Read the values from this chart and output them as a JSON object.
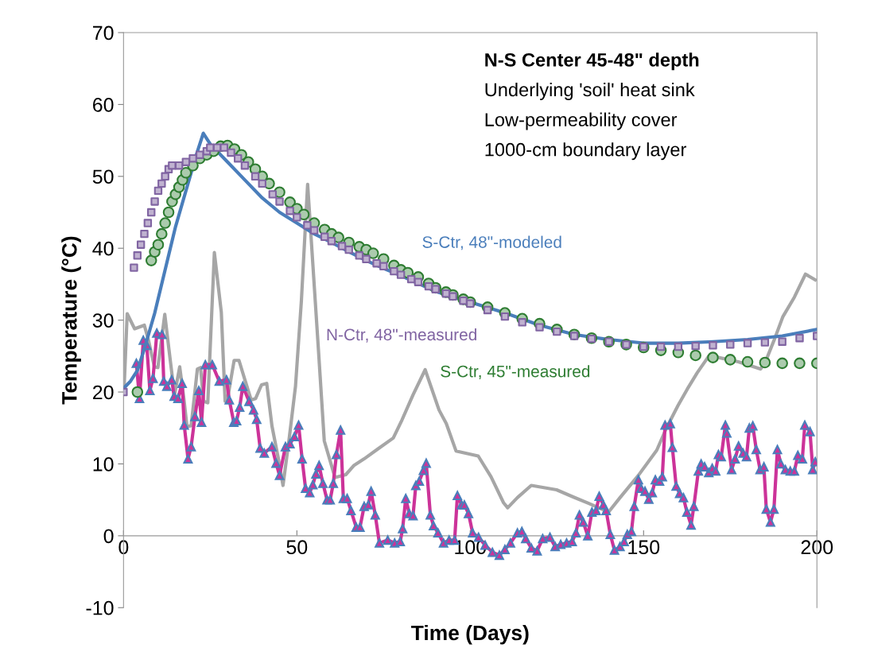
{
  "chart_data": {
    "type": "line",
    "xlabel": "Time (Days)",
    "ylabel": "Temperature (°C)",
    "xlim": [
      0,
      200
    ],
    "xticks": [
      0,
      50,
      100,
      150,
      200
    ],
    "ylim": [
      -10,
      70
    ],
    "yticks": [
      -10,
      0,
      10,
      20,
      30,
      40,
      50,
      60,
      70
    ],
    "grid": false,
    "legend": false,
    "series": [
      {
        "color": "#a6a6a6",
        "marker": "none",
        "x": [
          0.2,
          1.05,
          3.2,
          6,
          7.2,
          8.9,
          9.9,
          11.9,
          13,
          14.7,
          16.2,
          17.4,
          18.3,
          19.5,
          21.3,
          22.2,
          23.1,
          24.3,
          26.2,
          28.2,
          29.3,
          30.2,
          31.9,
          33.3,
          35,
          36.8,
          38.1,
          39.8,
          41.3,
          42.8,
          44.7,
          46,
          47.8,
          49.6,
          51.3,
          53.1,
          54.6,
          56.2,
          57.9,
          61,
          64.1,
          66.5,
          69.4,
          73.4,
          77.8,
          80.3,
          83.5,
          87,
          91,
          93.1,
          95.9,
          102.3,
          106,
          109.6,
          110.8,
          113.6,
          117.6,
          124.9,
          129.7,
          134.2,
          139.9,
          143.2,
          148.5,
          153.8,
          156.6,
          159.9,
          162.6,
          165.5,
          168.8,
          171.6,
          177.3,
          183.7,
          184.9,
          187.8,
          190.2,
          193.5,
          196.7,
          199.5
        ],
        "values": [
          20.9,
          30.9,
          28.8,
          29.3,
          27.2,
          23.5,
          23.4,
          30.8,
          26.3,
          19.6,
          23.5,
          19.1,
          15.2,
          15.3,
          23.2,
          23.4,
          18.7,
          18.5,
          39.4,
          31.1,
          18.7,
          19.6,
          24.4,
          24.4,
          21.7,
          18.9,
          19.1,
          21,
          21.2,
          15.3,
          10.6,
          7,
          13.6,
          20.8,
          32.7,
          48.9,
          37.8,
          26,
          13.2,
          8.1,
          8.5,
          9.8,
          10.7,
          12.1,
          13.6,
          16.1,
          19.6,
          23.1,
          17.5,
          15.6,
          11.8,
          11.1,
          8.2,
          4.6,
          3.9,
          5.3,
          7,
          6.4,
          5.4,
          4.5,
          3.3,
          5.3,
          8.4,
          11.9,
          15,
          18.1,
          20.4,
          22.7,
          25,
          24.8,
          24.2,
          23.2,
          23.9,
          27.4,
          30.5,
          33.2,
          36.4,
          35.6
        ]
      },
      {
        "color": "#cc3399",
        "marker": "triangle",
        "x": [
          3.7,
          4.6,
          5.7,
          6.7,
          7.6,
          8.5,
          9.6,
          11.1,
          11.6,
          12.5,
          13.9,
          14.6,
          15.7,
          16.9,
          17.5,
          18.6,
          19.5,
          20.6,
          21.7,
          22.5,
          23.6,
          25.6,
          27.6,
          29.7,
          30.5,
          31.8,
          32.6,
          33.5,
          34.4,
          36.2,
          37.5,
          38.4,
          39.4,
          40.6,
          42.8,
          44,
          45,
          46.7,
          48,
          49.3,
          50.5,
          51.5,
          52.5,
          53.7,
          54.6,
          55.5,
          56.4,
          57.5,
          58.7,
          59.6,
          60.5,
          61.4,
          62.6,
          63.4,
          64.5,
          65.6,
          67.1,
          68.2,
          69.4,
          70.6,
          71.4,
          72.6,
          73.8,
          76.2,
          78.2,
          79.8,
          80.5,
          81.4,
          82.4,
          83.5,
          84.3,
          85.3,
          86.5,
          87.3,
          88.5,
          89.4,
          90.7,
          92.3,
          93.9,
          95.5,
          96.3,
          97.5,
          98.3,
          99.5,
          100.7,
          102.4,
          104.3,
          106.4,
          108.4,
          110,
          111.6,
          113.6,
          114.9,
          116,
          117.6,
          119.3,
          120.9,
          123,
          124.5,
          126.1,
          127.8,
          129.4,
          130.5,
          131.5,
          132.6,
          133.9,
          135.1,
          136.3,
          137.2,
          138.4,
          139.2,
          140.4,
          141.6,
          143.2,
          144.4,
          145.3,
          146.5,
          147.3,
          148.5,
          149.3,
          150.4,
          151.5,
          152.5,
          153.4,
          154.6,
          155.4,
          156.2,
          157.7,
          158.3,
          159.4,
          160.4,
          161.5,
          162.5,
          163.7,
          164.5,
          165.8,
          166.6,
          167.6,
          168.8,
          169.8,
          170.8,
          171.6,
          172.4,
          173.6,
          174,
          175.4,
          176.4,
          177.4,
          178.7,
          179.7,
          180.5,
          181.5,
          182.5,
          183.6,
          184.7,
          185.4,
          186.6,
          187.6,
          188.6,
          189.6,
          190.9,
          192.3,
          193.5,
          194.5,
          195.8,
          196.5,
          198,
          198.8,
          199.5
        ],
        "values": [
          24.0,
          19.1,
          27.2,
          26.5,
          20.2,
          21.9,
          28.2,
          28.0,
          21.5,
          20.8,
          21.7,
          19.4,
          19.1,
          21.2,
          15.4,
          10.7,
          12.4,
          16.6,
          20.2,
          15.8,
          23.8,
          23.8,
          21.5,
          21.7,
          18.9,
          15.8,
          16.0,
          17.9,
          20.8,
          18.7,
          17.5,
          16.2,
          12.2,
          11.5,
          12.4,
          10.1,
          8.4,
          12.4,
          12.8,
          13.8,
          15.4,
          10.7,
          6.6,
          6.0,
          7.1,
          8.6,
          9.8,
          7.3,
          5.0,
          5.0,
          7.3,
          11.3,
          14.7,
          5.2,
          5.2,
          3.5,
          1.2,
          1.2,
          4.1,
          4.3,
          6.2,
          2.9,
          -1.0,
          -0.6,
          -1.0,
          -0.8,
          1.0,
          5.2,
          3.1,
          2.8,
          7.0,
          7.6,
          9.1,
          10.1,
          2.9,
          1.4,
          0.4,
          -1.0,
          -0.6,
          -0.6,
          5.6,
          4.3,
          4.3,
          3.1,
          0.4,
          -0.2,
          -1.3,
          -2.3,
          -2.7,
          -1.9,
          -1.0,
          0.4,
          0.6,
          -0.4,
          -1.7,
          -2.1,
          -0.4,
          -0.2,
          -1.5,
          -1.2,
          -1.0,
          -0.8,
          0.4,
          2.9,
          1.9,
          0.0,
          3.3,
          3.5,
          5.5,
          4.3,
          3.5,
          0.2,
          -2.0,
          -1.5,
          -0.8,
          0.2,
          0.6,
          4.1,
          7.8,
          6.6,
          6.2,
          5.1,
          6.0,
          7.8,
          7.6,
          8.2,
          15.4,
          15.6,
          12.3,
          6.9,
          5.9,
          5.3,
          3.3,
          1.5,
          4.1,
          9.0,
          10.0,
          9.6,
          8.8,
          9.4,
          9.0,
          11.3,
          11.0,
          15.4,
          14.3,
          9.2,
          10.7,
          12.5,
          11.5,
          11.0,
          15.0,
          15.3,
          12.0,
          9.2,
          9.6,
          3.7,
          1.9,
          3.7,
          12.0,
          10.0,
          9.2,
          9.0,
          9.0,
          11.2,
          10.7,
          15.4,
          14.5,
          9.2,
          10.3
        ]
      },
      {
        "name": "S-Ctr, 48\"-modeled",
        "color": "#4a7ebb",
        "marker": "none",
        "x": [
          0,
          2,
          4,
          6,
          9,
          12,
          15,
          18,
          21,
          23,
          25,
          30,
          35,
          40,
          45,
          50,
          55,
          60,
          65,
          70,
          75,
          80,
          90,
          100,
          110,
          120,
          130,
          140,
          150,
          160,
          170,
          180,
          190,
          200
        ],
        "values": [
          20.5,
          21.5,
          23,
          26,
          31,
          37,
          43,
          48,
          53,
          56,
          54.5,
          52,
          49.5,
          47,
          45,
          43.5,
          42,
          40.8,
          39.5,
          38.3,
          37.2,
          36.2,
          34,
          32.5,
          31,
          29.3,
          28,
          27.3,
          26.8,
          26.8,
          27,
          27.3,
          27.8,
          28.7
        ]
      },
      {
        "name": "S-Ctr, 45\"-measured",
        "type": "scatter",
        "color": "#2e7d32",
        "marker": "circle",
        "x": [
          4,
          8,
          9,
          10,
          11,
          12,
          13,
          14,
          15,
          16,
          17,
          18,
          20,
          22,
          24,
          26,
          28,
          30,
          32,
          34,
          36,
          38,
          40,
          42,
          45,
          48,
          50,
          52,
          55,
          58,
          60,
          62,
          65,
          68,
          70,
          72,
          75,
          78,
          80,
          82,
          85,
          88,
          90,
          93,
          95,
          98,
          100,
          105,
          110,
          115,
          120,
          125,
          130,
          135,
          140,
          145,
          150,
          155,
          160,
          165,
          170,
          175,
          180,
          185,
          190,
          195,
          200
        ],
        "values": [
          20,
          38.3,
          39.5,
          40.5,
          42,
          43.5,
          45,
          46.5,
          47.5,
          48.5,
          49.5,
          50.5,
          51.5,
          52.5,
          53,
          53.5,
          54.2,
          54.3,
          53.8,
          53,
          52,
          51,
          50,
          49,
          47.8,
          46.4,
          45.5,
          44.7,
          43.5,
          42.6,
          42,
          41.5,
          40.8,
          40.2,
          39.8,
          39.3,
          38.5,
          37.6,
          37,
          36.6,
          36,
          35.1,
          34.5,
          33.9,
          33.5,
          32.9,
          32.5,
          31.8,
          31,
          30.2,
          29.5,
          28.7,
          28,
          27.5,
          27,
          26.6,
          26.2,
          25.8,
          25.5,
          25.1,
          24.8,
          24.5,
          24.2,
          24.1,
          24,
          24,
          24
        ]
      },
      {
        "name": "N-Ctr, 48\"-measured",
        "type": "scatter",
        "color": "#8064a2",
        "marker": "square",
        "x": [
          0,
          3,
          4,
          5,
          6,
          7,
          8,
          9,
          10,
          11,
          12,
          13,
          14,
          16,
          18,
          20,
          22,
          24,
          25,
          27,
          29,
          31,
          33,
          35,
          38,
          40,
          43,
          45,
          48,
          50,
          53,
          55,
          58,
          60,
          63,
          65,
          68,
          70,
          73,
          75,
          78,
          80,
          83,
          85,
          88,
          90,
          93,
          95,
          98,
          100,
          105,
          110,
          115,
          120,
          125,
          130,
          135,
          140,
          145,
          150,
          155,
          160,
          165,
          170,
          175,
          180,
          185,
          190,
          195,
          200
        ],
        "values": [
          20,
          37.3,
          39,
          40.5,
          42,
          43.5,
          45,
          46.5,
          48,
          49,
          50,
          51,
          51.5,
          51.5,
          52,
          52.5,
          53,
          53.5,
          54,
          54,
          54,
          53.3,
          52.5,
          51.5,
          50,
          49,
          47.5,
          46.5,
          45.2,
          44.3,
          43.2,
          42.5,
          41.6,
          41,
          40.3,
          39.8,
          39,
          38.5,
          37.9,
          37.5,
          36.8,
          36.3,
          35.7,
          35.3,
          34.7,
          34.3,
          33.7,
          33.3,
          32.7,
          32.3,
          31.4,
          30.5,
          29.7,
          29,
          28.4,
          27.8,
          27.4,
          27,
          26.6,
          26.3,
          26.3,
          26.3,
          26.4,
          26.5,
          26.6,
          26.8,
          26.9,
          27,
          27.5,
          27.8
        ]
      }
    ],
    "annotations": [
      "N-S Center 45-48\" depth",
      "Underlying 'soil' heat sink",
      "Low-permeability cover",
      "1000-cm boundary layer"
    ]
  }
}
